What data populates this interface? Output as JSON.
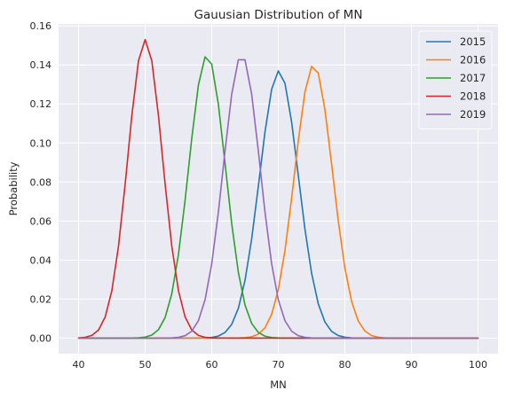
{
  "chart_data": {
    "type": "line",
    "title": "Gauusian Distribution of MN",
    "xlabel": "MN",
    "ylabel": "Probability",
    "xlim": [
      37,
      103
    ],
    "ylim": [
      -0.008,
      0.161
    ],
    "xticks": [
      40,
      50,
      60,
      70,
      80,
      90,
      100
    ],
    "yticks": [
      0.0,
      0.02,
      0.04,
      0.06,
      0.08,
      0.1,
      0.12,
      0.14,
      0.16
    ],
    "ytick_labels": [
      "0.00",
      "0.02",
      "0.04",
      "0.06",
      "0.08",
      "0.10",
      "0.12",
      "0.14",
      "0.16"
    ],
    "grid": true,
    "legend_position": "top-right",
    "colors": {
      "background": "#eaeaf2",
      "grid": "#ffffff"
    },
    "series": [
      {
        "name": "2015",
        "color": "#1f77b4",
        "mean": 70.1,
        "peak": 0.137
      },
      {
        "name": "2016",
        "color": "#ff7f0e",
        "mean": 75.3,
        "peak": 0.14
      },
      {
        "name": "2017",
        "color": "#2ca02c",
        "mean": 59.3,
        "peak": 0.145
      },
      {
        "name": "2018",
        "color": "#d62728",
        "mean": 50.0,
        "peak": 0.153
      },
      {
        "name": "2019",
        "color": "#9467bd",
        "mean": 64.5,
        "peak": 0.145
      }
    ]
  }
}
